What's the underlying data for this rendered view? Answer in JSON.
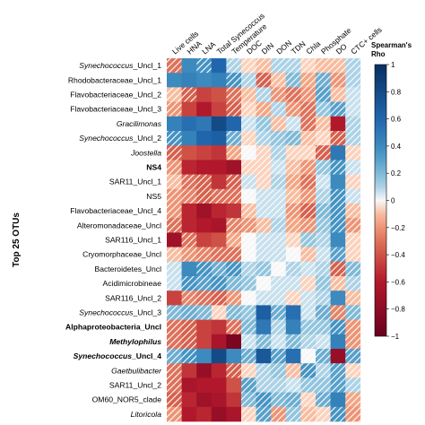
{
  "chart_data": {
    "type": "heatmap",
    "title": "",
    "ylabel": "Top 25 OTUs",
    "columns": [
      "Live cells",
      "HNA",
      "LNA",
      "Total Synecoccus",
      "Temperature",
      "DOC",
      "DIN",
      "DON",
      "TDN",
      "Chla",
      "Phosphate",
      "DO",
      "CTC+ cells"
    ],
    "rows": [
      {
        "label": "Synechococcus_Uncl_1",
        "italic_part": "Synechococcus",
        "rest": "_Uncl_1",
        "bold": false
      },
      {
        "label": "Rhodobacteraceae_Uncl_1",
        "italic_part": "",
        "rest": "Rhodobacteraceae_Uncl_1",
        "bold": false
      },
      {
        "label": "Flavobacteriaceae_Uncl_2",
        "italic_part": "",
        "rest": "Flavobacteriaceae_Uncl_2",
        "bold": false
      },
      {
        "label": "Flavobacteriaceae_Uncl_3",
        "italic_part": "",
        "rest": "Flavobacteriaceae_Uncl_3",
        "bold": false
      },
      {
        "label": "Gracilimonas",
        "italic_part": "Gracilimonas",
        "rest": "",
        "bold": false
      },
      {
        "label": "Synechococcus_Uncl_2",
        "italic_part": "Synechococcus",
        "rest": "_Uncl_2",
        "bold": false
      },
      {
        "label": "Joostella",
        "italic_part": "Joostella",
        "rest": "",
        "bold": false
      },
      {
        "label": "NS4",
        "italic_part": "",
        "rest": "NS4",
        "bold": true
      },
      {
        "label": "SAR11_Uncl_1",
        "italic_part": "",
        "rest": "SAR11_Uncl_1",
        "bold": false
      },
      {
        "label": "NS5",
        "italic_part": "",
        "rest": "NS5",
        "bold": false
      },
      {
        "label": "Flavobacteriaceae_Uncl_4",
        "italic_part": "",
        "rest": "Flavobacteriaceae_Uncl_4",
        "bold": false
      },
      {
        "label": "Alteromonadaceae_Uncl",
        "italic_part": "",
        "rest": "Alteromonadaceae_Uncl",
        "bold": false
      },
      {
        "label": "SAR116_Uncl_1",
        "italic_part": "",
        "rest": "SAR116_Uncl_1",
        "bold": false
      },
      {
        "label": "Cryomorphaceae_Uncl",
        "italic_part": "",
        "rest": "Cryomorphaceae_Uncl",
        "bold": false
      },
      {
        "label": "Bacteroidetes_Uncl",
        "italic_part": "",
        "rest": "Bacteroidetes_Uncl",
        "bold": false
      },
      {
        "label": "Acidimicrobineae",
        "italic_part": "",
        "rest": "Acidimicrobineae",
        "bold": false
      },
      {
        "label": "SAR116_Uncl_2",
        "italic_part": "",
        "rest": "SAR116_Uncl_2",
        "bold": false
      },
      {
        "label": "Synechococcus_Uncl_3",
        "italic_part": "Synechococcus",
        "rest": "_Uncl_3",
        "bold": false
      },
      {
        "label": "Alphaproteobacteria_Uncl",
        "italic_part": "",
        "rest": "Alphaproteobacteria_Uncl",
        "bold": true
      },
      {
        "label": "Methylophilus",
        "italic_part": "Methylophilus",
        "rest": "",
        "bold": true
      },
      {
        "label": "Synechococcus_Uncl_4",
        "italic_part": "Synechococcus",
        "rest": "_Uncl_4",
        "bold": true
      },
      {
        "label": "Gaetbulibacter",
        "italic_part": "Gaetbulibacter",
        "rest": "",
        "bold": false
      },
      {
        "label": "SAR11_Uncl_2",
        "italic_part": "",
        "rest": "SAR11_Uncl_2",
        "bold": false
      },
      {
        "label": "OM60_NOR5_clade",
        "italic_part": "",
        "rest": "OM60_NOR5_clade",
        "bold": false
      },
      {
        "label": "Litoricola",
        "italic_part": "Litoricola",
        "rest": "",
        "bold": false
      }
    ],
    "values": [
      [
        -0.3,
        0.4,
        0.35,
        0.6,
        0.1,
        -0.05,
        -0.1,
        0.1,
        0.1,
        -0.05,
        -0.1,
        -0.1,
        0.1
      ],
      [
        0.4,
        0.45,
        0.4,
        0.45,
        0.35,
        0.1,
        -0.35,
        -0.1,
        0.2,
        -0.15,
        0.25,
        -0.2,
        0.1
      ],
      [
        -0.1,
        -0.35,
        -0.45,
        -0.4,
        -0.3,
        -0.1,
        0.1,
        -0.2,
        -0.3,
        -0.2,
        0.3,
        -0.1,
        0.05
      ],
      [
        -0.2,
        -0.45,
        -0.6,
        -0.45,
        -0.35,
        -0.05,
        -0.15,
        0.1,
        -0.2,
        -0.3,
        0.15,
        0.3,
        0.05
      ],
      [
        0.45,
        0.55,
        0.5,
        0.8,
        0.6,
        0.05,
        0.15,
        -0.1,
        0.05,
        -0.3,
        -0.1,
        -0.6,
        0.1
      ],
      [
        0.35,
        0.45,
        0.6,
        0.65,
        0.25,
        -0.05,
        0.1,
        0.15,
        0.2,
        -0.1,
        -0.05,
        -0.35,
        0.1
      ],
      [
        -0.35,
        -0.4,
        -0.45,
        -0.5,
        -0.15,
        0.0,
        -0.05,
        0.1,
        -0.05,
        -0.05,
        -0.35,
        0.5,
        -0.05
      ],
      [
        -0.2,
        -0.55,
        -0.6,
        -0.6,
        -0.7,
        -0.05,
        -0.05,
        0.05,
        -0.1,
        -0.2,
        0.15,
        0.35,
        0.05
      ],
      [
        -0.1,
        -0.3,
        -0.35,
        -0.5,
        -0.35,
        0.05,
        -0.05,
        0.1,
        -0.15,
        -0.3,
        0.05,
        0.4,
        -0.05
      ],
      [
        -0.2,
        -0.25,
        -0.35,
        -0.3,
        -0.3,
        0.0,
        0.05,
        0.05,
        -0.1,
        -0.2,
        0.1,
        0.35,
        0.05
      ],
      [
        -0.2,
        -0.55,
        -0.7,
        -0.55,
        -0.5,
        -0.1,
        0.05,
        0.05,
        -0.2,
        -0.35,
        0.2,
        0.35,
        -0.1
      ],
      [
        -0.3,
        -0.55,
        -0.6,
        -0.65,
        -0.25,
        -0.2,
        -0.1,
        0.1,
        -0.15,
        -0.2,
        0.15,
        0.35,
        -0.2
      ],
      [
        -0.7,
        -0.3,
        -0.45,
        -0.4,
        -0.15,
        0.0,
        0.05,
        0.05,
        -0.05,
        0.15,
        0.1,
        0.4,
        -0.05
      ],
      [
        -0.1,
        -0.2,
        -0.25,
        -0.3,
        -0.3,
        0.0,
        0.05,
        0.05,
        0.0,
        -0.1,
        0.05,
        0.3,
        -0.05
      ],
      [
        0.05,
        0.4,
        0.35,
        0.25,
        0.35,
        0.1,
        0.15,
        0.0,
        0.1,
        0.05,
        0.1,
        -0.35,
        0.2
      ],
      [
        0.05,
        0.35,
        0.3,
        0.35,
        0.2,
        0.15,
        0.0,
        0.05,
        0.05,
        -0.05,
        0.15,
        -0.1,
        0.1
      ],
      [
        -0.45,
        -0.25,
        -0.3,
        -0.35,
        -0.2,
        0.0,
        0.05,
        0.05,
        -0.05,
        0.05,
        0.1,
        0.4,
        -0.1
      ],
      [
        0.2,
        0.25,
        0.2,
        -0.05,
        0.2,
        0.15,
        0.65,
        0.25,
        0.55,
        0.05,
        0.25,
        -0.25,
        0.2
      ],
      [
        -0.3,
        -0.35,
        -0.45,
        -0.5,
        -0.3,
        0.2,
        0.5,
        0.1,
        0.45,
        0.15,
        0.15,
        0.35,
        -0.2
      ],
      [
        -0.3,
        -0.35,
        -0.45,
        -0.65,
        -0.9,
        0.05,
        0.2,
        0.05,
        0.2,
        0.1,
        0.05,
        0.45,
        -0.2
      ],
      [
        0.25,
        0.35,
        0.4,
        0.8,
        0.4,
        0.25,
        0.7,
        0.3,
        0.55,
        0.0,
        0.25,
        -0.75,
        0.3
      ],
      [
        -0.3,
        -0.5,
        -0.75,
        -0.55,
        -0.35,
        -0.05,
        0.1,
        0.15,
        -0.1,
        0.35,
        0.1,
        0.3,
        -0.05
      ],
      [
        -0.3,
        -0.65,
        -0.6,
        -0.6,
        -0.4,
        0.3,
        0.1,
        0.1,
        0.05,
        0.15,
        0.15,
        0.3,
        0.1
      ],
      [
        -0.35,
        -0.55,
        -0.7,
        -0.65,
        -0.5,
        0.2,
        0.35,
        0.2,
        0.25,
        -0.05,
        0.25,
        0.45,
        -0.15
      ],
      [
        -0.2,
        -0.6,
        -0.55,
        -0.75,
        -0.65,
        -0.05,
        0.3,
        -0.2,
        0.15,
        -0.1,
        -0.05,
        0.35,
        -0.2
      ]
    ],
    "colorbar": {
      "title_line1": "Spearman's",
      "title_line2": "Rho",
      "ticks": [
        1,
        0.8,
        0.6,
        0.4,
        0.2,
        0,
        -0.2,
        -0.4,
        -0.6,
        -0.8,
        -1
      ],
      "tick_labels": [
        "1",
        "0.8",
        "0.6",
        "0.4",
        "0.2",
        "0",
        "−0.2",
        "−0.4",
        "−0.6",
        "−0.8",
        "−1"
      ],
      "range": [
        -1,
        1
      ]
    },
    "colors": {
      "strong_negative": "#67001f",
      "negative": "#d6604d",
      "neutral": "#f7f7f7",
      "positive": "#4393c3",
      "strong_positive": "#053061"
    }
  }
}
